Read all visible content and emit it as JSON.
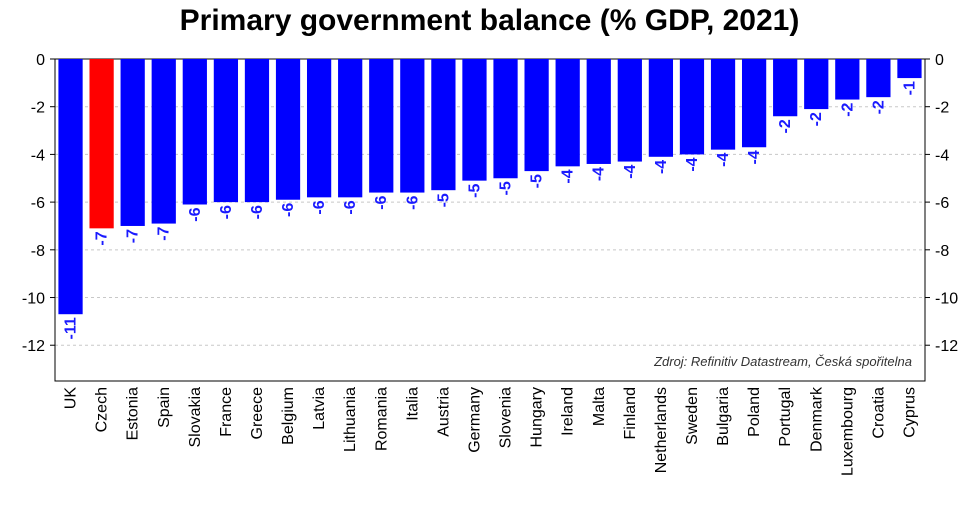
{
  "chart_data": {
    "type": "bar",
    "title": "Primary government balance (% GDP, 2021)",
    "xlabel": "",
    "ylabel": "",
    "source": "Zdroj: Refinitiv Datastream, Česká spořitelna",
    "ylim": [
      -13.5,
      0
    ],
    "yticks": [
      0,
      -2,
      -4,
      -6,
      -8,
      -10,
      -12
    ],
    "grid": true,
    "categories": [
      "UK",
      "Czech",
      "Estonia",
      "Spain",
      "Slovakia",
      "France",
      "Greece",
      "Belgium",
      "Latvia",
      "Lithuania",
      "Romania",
      "Italia",
      "Austria",
      "Germany",
      "Slovenia",
      "Hungary",
      "Ireland",
      "Malta",
      "Finland",
      "Netherlands",
      "Sweden",
      "Bulgaria",
      "Poland",
      "Portugal",
      "Denmark",
      "Luxembourg",
      "Croatia",
      "Cyprus"
    ],
    "values": [
      -10.7,
      -7.1,
      -7.0,
      -6.9,
      -6.1,
      -6.0,
      -6.0,
      -5.9,
      -5.8,
      -5.8,
      -5.6,
      -5.6,
      -5.5,
      -5.1,
      -5.0,
      -4.7,
      -4.5,
      -4.4,
      -4.3,
      -4.1,
      -4.0,
      -3.8,
      -3.7,
      -2.4,
      -2.1,
      -1.7,
      -1.6,
      -0.8
    ],
    "data_labels": [
      "-11",
      "-7",
      "-7",
      "-7",
      "-6",
      "-6",
      "-6",
      "-6",
      "-6",
      "-6",
      "-6",
      "-6",
      "-5",
      "-5",
      "-5",
      "-5",
      "-4",
      "-4",
      "-4",
      "-4",
      "-4",
      "-4",
      "-4",
      "-2",
      "-2",
      "-2",
      "-2",
      "-1"
    ],
    "colors": {
      "default": "#0000ff",
      "highlight": "#ff0000",
      "highlight_category": "Czech",
      "label": "#1a1aff",
      "grid": "#c8c8c8"
    }
  }
}
